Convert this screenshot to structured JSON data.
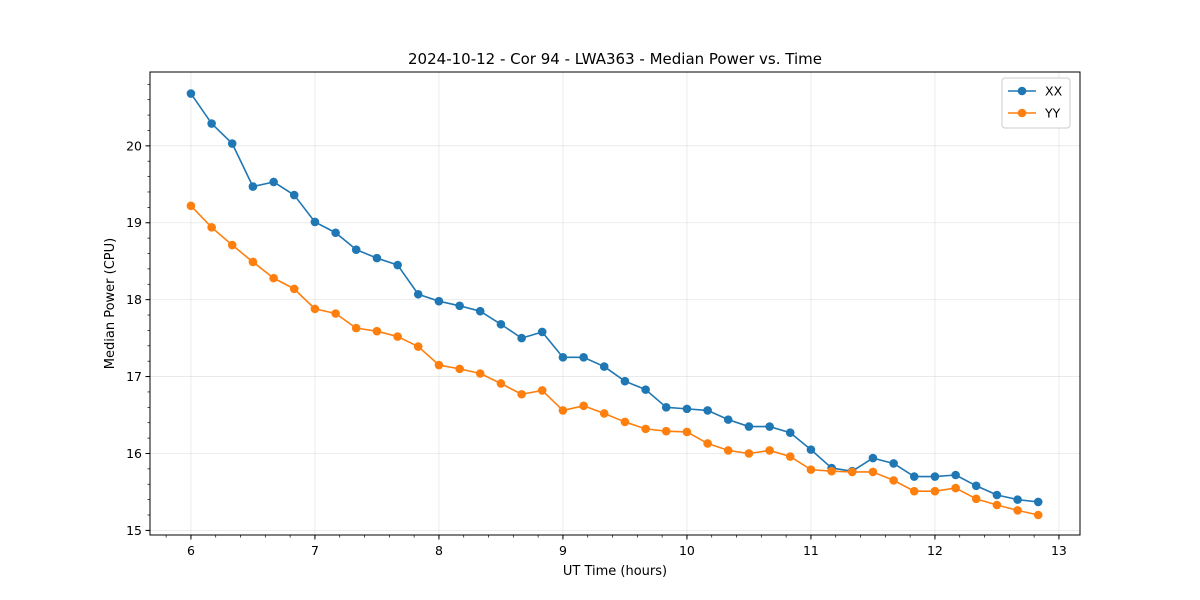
{
  "chart_data": {
    "type": "line",
    "title": "2024-10-12 - Cor 94 - LWA363 - Median Power vs. Time",
    "xlabel": "UT Time (hours)",
    "ylabel": "Median Power (CPU)",
    "xlim": [
      5.67,
      13.17
    ],
    "ylim": [
      14.94,
      20.96
    ],
    "xticks": [
      6,
      7,
      8,
      9,
      10,
      11,
      12,
      13
    ],
    "yticks": [
      15,
      16,
      17,
      18,
      19,
      20
    ],
    "x_minor_step": 0.2,
    "y_minor_step": 0.2,
    "grid": true,
    "legend_position": "top-right",
    "x": [
      6.0,
      6.167,
      6.333,
      6.5,
      6.667,
      6.833,
      7.0,
      7.167,
      7.333,
      7.5,
      7.667,
      7.833,
      8.0,
      8.167,
      8.333,
      8.5,
      8.667,
      8.833,
      9.0,
      9.167,
      9.333,
      9.5,
      9.667,
      9.833,
      10.0,
      10.167,
      10.333,
      10.5,
      10.667,
      10.833,
      11.0,
      11.167,
      11.333,
      11.5,
      11.667,
      11.833,
      12.0,
      12.167,
      12.333,
      12.5,
      12.667,
      12.833
    ],
    "series": [
      {
        "name": "XX",
        "color": "#1f77b4",
        "values": [
          20.68,
          20.29,
          20.03,
          19.47,
          19.53,
          19.36,
          19.01,
          18.87,
          18.65,
          18.54,
          18.45,
          18.07,
          17.98,
          17.92,
          17.85,
          17.68,
          17.5,
          17.58,
          17.25,
          17.25,
          17.13,
          16.94,
          16.83,
          16.6,
          16.58,
          16.56,
          16.44,
          16.35,
          16.35,
          16.27,
          16.05,
          15.81,
          15.77,
          15.94,
          15.87,
          15.7,
          15.7,
          15.72,
          15.58,
          15.46,
          15.4,
          15.37
        ]
      },
      {
        "name": "YY",
        "color": "#ff7f0e",
        "values": [
          19.22,
          18.94,
          18.71,
          18.49,
          18.28,
          18.14,
          17.88,
          17.82,
          17.63,
          17.59,
          17.52,
          17.39,
          17.15,
          17.1,
          17.04,
          16.91,
          16.77,
          16.82,
          16.56,
          16.62,
          16.52,
          16.41,
          16.32,
          16.29,
          16.28,
          16.13,
          16.04,
          16.0,
          16.04,
          15.96,
          15.79,
          15.77,
          15.76,
          15.76,
          15.65,
          15.51,
          15.51,
          15.55,
          15.41,
          15.33,
          15.26,
          15.2
        ]
      }
    ]
  }
}
